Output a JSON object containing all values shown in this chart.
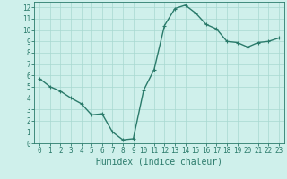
{
  "x": [
    0,
    1,
    2,
    3,
    4,
    5,
    6,
    7,
    8,
    9,
    10,
    11,
    12,
    13,
    14,
    15,
    16,
    17,
    18,
    19,
    20,
    21,
    22,
    23
  ],
  "y": [
    5.7,
    5.0,
    4.6,
    4.0,
    3.5,
    2.5,
    2.6,
    1.0,
    0.3,
    0.4,
    4.7,
    6.5,
    10.4,
    11.9,
    12.2,
    11.5,
    10.5,
    10.1,
    9.0,
    8.9,
    8.5,
    8.9,
    9.0,
    9.3
  ],
  "line_color": "#2a7a6a",
  "marker": "+",
  "marker_size": 3,
  "bg_color": "#cff0eb",
  "grid_color": "#a8d8d0",
  "xlabel": "Humidex (Indice chaleur)",
  "xlim": [
    -0.5,
    23.5
  ],
  "ylim": [
    0,
    12.5
  ],
  "xticks": [
    0,
    1,
    2,
    3,
    4,
    5,
    6,
    7,
    8,
    9,
    10,
    11,
    12,
    13,
    14,
    15,
    16,
    17,
    18,
    19,
    20,
    21,
    22,
    23
  ],
  "yticks": [
    0,
    1,
    2,
    3,
    4,
    5,
    6,
    7,
    8,
    9,
    10,
    11,
    12
  ],
  "xlabel_fontsize": 7,
  "tick_fontsize": 5.5,
  "line_width": 1.0
}
